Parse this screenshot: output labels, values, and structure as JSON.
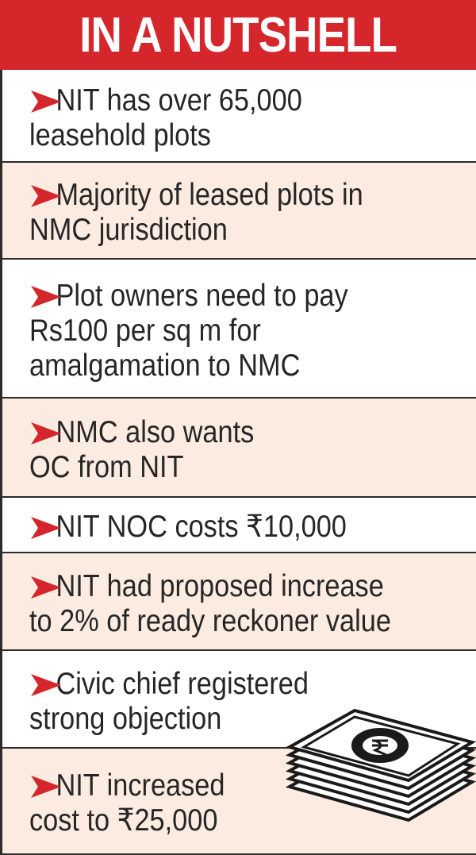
{
  "header": {
    "title": "IN A NUTSHELL"
  },
  "items": [
    {
      "lines": [
        "NIT has over 65,000",
        "leasehold plots"
      ]
    },
    {
      "lines": [
        "Majority of leased plots in",
        "NMC jurisdiction"
      ]
    },
    {
      "lines": [
        "Plot owners need to pay",
        "Rs100 per sq m for",
        "amalgamation to NMC"
      ]
    },
    {
      "lines": [
        "NMC also wants",
        "OC from NIT"
      ]
    },
    {
      "lines": [
        "NIT NOC costs ₹10,000"
      ]
    },
    {
      "lines": [
        "NIT had proposed increase",
        "to 2% of ready reckoner value"
      ]
    },
    {
      "lines": [
        "Civic chief registered",
        "strong objection"
      ]
    },
    {
      "lines": [
        "NIT increased",
        "cost to ₹25,000"
      ]
    }
  ]
}
